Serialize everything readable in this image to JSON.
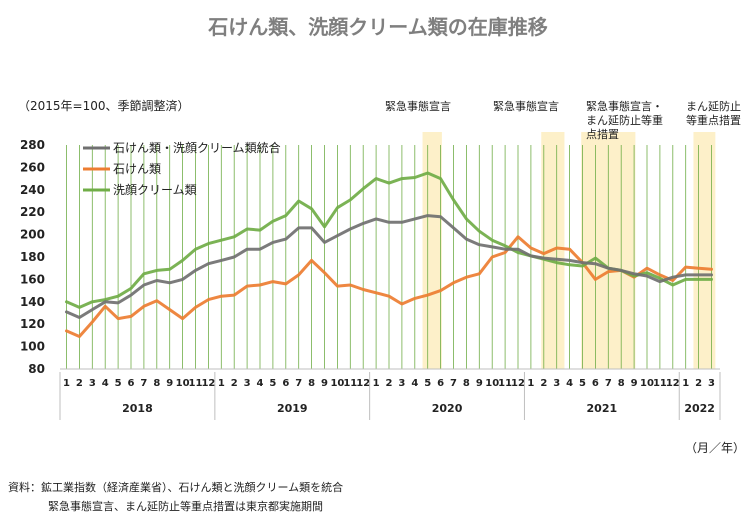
{
  "chart_data": {
    "type": "line",
    "title": "石けん類、洗顔クリーム類の在庫推移",
    "unit_label": "（2015年=100、季節調整済）",
    "x_unit_label": "（月／年）",
    "ylim": [
      80,
      280
    ],
    "yticks": [
      80,
      100,
      120,
      140,
      160,
      180,
      200,
      220,
      240,
      260,
      280
    ],
    "month_labels": [
      "1",
      "2",
      "3",
      "4",
      "5",
      "6",
      "7",
      "8",
      "9",
      "10",
      "11",
      "12",
      "1",
      "2",
      "3",
      "4",
      "5",
      "6",
      "7",
      "8",
      "9",
      "10",
      "11",
      "12",
      "1",
      "2",
      "3",
      "4",
      "5",
      "6",
      "7",
      "8",
      "9",
      "10",
      "11",
      "12",
      "1",
      "2",
      "3",
      "4",
      "5",
      "6",
      "7",
      "8",
      "9",
      "10",
      "11",
      "12",
      "1",
      "2",
      "3"
    ],
    "years": [
      {
        "label": "2018",
        "start": 0,
        "count": 12
      },
      {
        "label": "2019",
        "start": 12,
        "count": 12
      },
      {
        "label": "2020",
        "start": 24,
        "count": 12
      },
      {
        "label": "2021",
        "start": 36,
        "count": 12
      },
      {
        "label": "2022",
        "start": 48,
        "count": 3
      }
    ],
    "series": [
      {
        "name": "石けん類・洗顔クリーム類統合",
        "color": "#707070",
        "values": [
          131,
          126,
          133,
          140,
          139,
          146,
          155,
          159,
          157,
          160,
          168,
          174,
          177,
          180,
          187,
          187,
          193,
          196,
          206,
          206,
          193,
          199,
          205,
          210,
          214,
          211,
          211,
          214,
          217,
          216,
          206,
          196,
          191,
          189,
          187,
          187,
          181,
          179,
          178,
          177,
          175,
          174,
          170,
          168,
          165,
          163,
          158,
          162,
          164,
          164,
          164
        ]
      },
      {
        "name": "石けん類",
        "color": "#ed7d31",
        "values": [
          114,
          109,
          122,
          136,
          125,
          127,
          136,
          141,
          133,
          125,
          135,
          142,
          145,
          146,
          154,
          155,
          158,
          156,
          164,
          177,
          166,
          154,
          155,
          151,
          148,
          145,
          138,
          143,
          146,
          150,
          157,
          162,
          165,
          180,
          184,
          198,
          188,
          183,
          188,
          187,
          175,
          160,
          167,
          168,
          162,
          170,
          164,
          159,
          171,
          170,
          169
        ]
      },
      {
        "name": "洗顔クリーム類",
        "color": "#70ad47",
        "values": [
          140,
          135,
          140,
          142,
          145,
          152,
          165,
          168,
          169,
          177,
          187,
          192,
          195,
          198,
          205,
          204,
          212,
          217,
          230,
          223,
          207,
          224,
          231,
          241,
          250,
          246,
          250,
          251,
          255,
          250,
          231,
          214,
          203,
          195,
          190,
          184,
          181,
          178,
          175,
          173,
          172,
          179,
          170,
          168,
          163,
          166,
          161,
          155,
          160,
          160,
          160
        ]
      }
    ],
    "highlight_periods": [
      {
        "label": "緊急事態宣言",
        "start": 27.6,
        "end": 29.1
      },
      {
        "label": "緊急事態宣言",
        "start": 36.8,
        "end": 38.6
      },
      {
        "label": "緊急事態宣言・まん延防止等重点措置",
        "start": 39.9,
        "end": 44.1
      },
      {
        "label": "まん延防止等重点措置",
        "start": 48.6,
        "end": 50.3
      }
    ],
    "annotation_lines": [
      [
        "緊急事態宣言"
      ],
      [
        "緊急事態宣言"
      ],
      [
        "緊急事態宣言・",
        "まん延防止等重",
        "点措置"
      ],
      [
        "まん延防止",
        "等重点措置"
      ]
    ],
    "legend_position": "top-left",
    "colors": {
      "highlight": "#fdf0c9",
      "grid": "#70ad47",
      "axis": "#bfbfbf"
    }
  },
  "source_lines": [
    "資料：鉱工業指数（経済産業省）、石けん類と洗顔クリーム類を統合",
    "緊急事態宣言、まん延防止等重点措置は東京都実施期間"
  ]
}
